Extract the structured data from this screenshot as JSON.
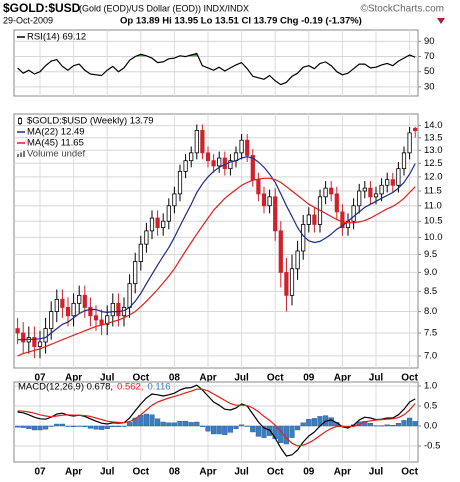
{
  "header": {
    "title": "$GOLD:$USD",
    "subtitle": "(Gold (EOD)/US Dollar (EOD)) INDX/INDX",
    "source": "©StockCharts.com",
    "date": "29-Oct-2009",
    "quote": "Op 13.89 Hi 13.95 Lo 13.51 Cl 13.79 Chg -0.19 (-1.37%)"
  },
  "chart_data": [
    {
      "type": "line",
      "ylim": [
        18,
        105
      ],
      "yticks": [
        30,
        50,
        70,
        90
      ],
      "grid": true,
      "legend": "top-left",
      "overbought": 70,
      "overbought_color": "#5a9a5a",
      "series": [
        {
          "name": "RSI(14) 69.12",
          "color": "#000000",
          "values": [
            55,
            48,
            52,
            47,
            50,
            58,
            64,
            66,
            57,
            52,
            58,
            60,
            52,
            47,
            46,
            45,
            52,
            57,
            50,
            55,
            65,
            70,
            73,
            71,
            68,
            62,
            63,
            67,
            68,
            71,
            70,
            72,
            74,
            58,
            55,
            52,
            56,
            51,
            55,
            59,
            62,
            54,
            44,
            42,
            40,
            45,
            38,
            33,
            36,
            44,
            48,
            56,
            58,
            54,
            61,
            63,
            58,
            50,
            46,
            48,
            54,
            60,
            60,
            55,
            56,
            59,
            61,
            58,
            64,
            68,
            72,
            69.12
          ]
        }
      ]
    },
    {
      "type": "candlestick",
      "log": true,
      "ylim": [
        6.75,
        14.5
      ],
      "grid": true,
      "legend": "top-left",
      "yticks": [
        {
          "value": 7,
          "label": "7.0"
        },
        7.5,
        {
          "value": 8,
          "label": "8.0"
        },
        8.5,
        {
          "value": 9,
          "label": "9.0"
        },
        9.5,
        {
          "value": 10,
          "label": "10.0"
        },
        10.5,
        {
          "value": 11,
          "label": "11.0"
        },
        11.5,
        {
          "value": 12,
          "label": "12.0"
        },
        12.5,
        {
          "value": 13,
          "label": "13.0"
        },
        13.5,
        {
          "value": 14,
          "label": "14.0"
        }
      ],
      "categories": [
        null,
        null,
        null,
        null,
        "07",
        null,
        null,
        null,
        null,
        null,
        "Apr",
        null,
        null,
        null,
        null,
        null,
        "Jul",
        null,
        null,
        null,
        null,
        null,
        "Oct",
        null,
        null,
        null,
        null,
        null,
        "08",
        null,
        null,
        null,
        null,
        null,
        "Apr",
        null,
        null,
        null,
        null,
        null,
        "Jul",
        null,
        null,
        null,
        null,
        null,
        "Oct",
        null,
        null,
        null,
        null,
        null,
        "09",
        null,
        null,
        null,
        null,
        null,
        "Apr",
        null,
        null,
        null,
        null,
        null,
        "Jul",
        null,
        null,
        null,
        null,
        null,
        "Oct",
        null
      ],
      "volume_label": "Volume undef",
      "series": [
        {
          "name": "$GOLD:$USD (Weekly) 13.79",
          "color": "#000000",
          "down_color": "#d0202a",
          "open": [
            7.6,
            7.5,
            7.3,
            7.4,
            7.2,
            7.3,
            7.6,
            8.0,
            8.3,
            8.1,
            7.9,
            8.2,
            8.4,
            8.1,
            7.9,
            7.8,
            7.7,
            7.9,
            8.2,
            7.9,
            8.1,
            8.7,
            9.3,
            9.8,
            10.2,
            10.6,
            10.3,
            10.5,
            11.0,
            11.4,
            12.2,
            12.6,
            12.9,
            13.8,
            12.9,
            12.6,
            12.4,
            12.7,
            12.3,
            12.6,
            12.9,
            13.4,
            12.8,
            11.9,
            11.4,
            11.0,
            11.3,
            10.2,
            9.0,
            8.4,
            9.1,
            9.6,
            10.4,
            10.7,
            10.4,
            11.3,
            11.6,
            11.4,
            10.8,
            10.3,
            10.5,
            11.0,
            11.5,
            11.6,
            11.3,
            11.4,
            11.7,
            11.9,
            11.7,
            12.3,
            12.9,
            13.89
          ],
          "high": [
            7.85,
            7.75,
            7.65,
            7.65,
            7.55,
            7.85,
            8.25,
            8.55,
            8.55,
            8.35,
            8.45,
            8.65,
            8.65,
            8.35,
            8.15,
            8.05,
            8.15,
            8.45,
            8.45,
            8.35,
            8.95,
            9.55,
            10.05,
            10.45,
            10.85,
            10.85,
            10.75,
            11.25,
            11.65,
            12.45,
            12.85,
            13.15,
            14.05,
            14.05,
            13.15,
            12.85,
            12.95,
            12.95,
            12.85,
            13.15,
            13.65,
            13.65,
            13.05,
            12.15,
            11.65,
            11.55,
            11.6,
            10.5,
            9.4,
            9.5,
            9.9,
            10.7,
            10.95,
            10.95,
            11.55,
            11.85,
            11.85,
            11.65,
            11.05,
            10.75,
            11.25,
            11.75,
            11.85,
            11.85,
            11.65,
            11.95,
            12.15,
            12.15,
            12.55,
            13.15,
            13.95,
            13.95
          ],
          "low": [
            7.25,
            7.05,
            7.05,
            6.95,
            6.95,
            7.05,
            7.35,
            7.75,
            7.85,
            7.65,
            7.65,
            7.95,
            7.85,
            7.65,
            7.55,
            7.45,
            7.45,
            7.65,
            7.65,
            7.65,
            7.85,
            8.45,
            9.05,
            9.55,
            9.95,
            10.05,
            10.05,
            10.25,
            10.75,
            11.15,
            11.95,
            12.35,
            12.65,
            12.65,
            12.35,
            12.15,
            12.15,
            12.05,
            12.05,
            12.35,
            12.65,
            12.55,
            11.65,
            11.15,
            10.75,
            10.75,
            9.9,
            8.6,
            8.0,
            8.15,
            8.8,
            9.35,
            10.15,
            10.15,
            10.15,
            11.05,
            11.15,
            10.55,
            10.05,
            10.05,
            10.25,
            10.75,
            11.25,
            11.05,
            11.05,
            11.15,
            11.45,
            11.45,
            11.45,
            12.05,
            12.65,
            13.51
          ],
          "close": [
            7.5,
            7.3,
            7.4,
            7.2,
            7.3,
            7.6,
            8.0,
            8.3,
            8.1,
            7.9,
            8.2,
            8.4,
            8.1,
            7.9,
            7.8,
            7.7,
            7.9,
            8.2,
            7.9,
            8.1,
            8.7,
            9.3,
            9.8,
            10.2,
            10.6,
            10.3,
            10.5,
            11.0,
            11.4,
            12.2,
            12.6,
            12.9,
            13.8,
            12.9,
            12.6,
            12.4,
            12.7,
            12.3,
            12.6,
            12.9,
            13.4,
            12.8,
            11.9,
            11.4,
            11.0,
            11.3,
            10.2,
            9.0,
            8.4,
            9.1,
            9.6,
            10.4,
            10.7,
            10.4,
            11.3,
            11.6,
            11.4,
            10.8,
            10.3,
            10.5,
            11.0,
            11.5,
            11.6,
            11.3,
            11.4,
            11.7,
            11.9,
            11.7,
            12.3,
            12.9,
            13.7,
            13.79
          ]
        },
        {
          "name": "MA(22) 12.49",
          "type": "line",
          "color": "#1f2a8c",
          "values": [
            7.35,
            7.35,
            7.36,
            7.36,
            7.37,
            7.4,
            7.5,
            7.6,
            7.7,
            7.75,
            7.85,
            7.95,
            8.02,
            8.05,
            8.05,
            8.0,
            7.98,
            8.0,
            8.0,
            8.02,
            8.1,
            8.25,
            8.45,
            8.7,
            8.95,
            9.2,
            9.45,
            9.7,
            10.0,
            10.35,
            10.7,
            11.05,
            11.45,
            11.75,
            12.0,
            12.2,
            12.35,
            12.45,
            12.55,
            12.6,
            12.7,
            12.75,
            12.7,
            12.55,
            12.35,
            12.1,
            11.8,
            11.4,
            11.0,
            10.65,
            10.3,
            10.05,
            9.9,
            9.85,
            9.88,
            9.98,
            10.1,
            10.25,
            10.35,
            10.5,
            10.65,
            10.8,
            10.95,
            11.05,
            11.15,
            11.25,
            11.35,
            11.45,
            11.6,
            11.8,
            12.1,
            12.49
          ]
        },
        {
          "name": "MA(45) 11.65",
          "type": "line",
          "color": "#e0201b",
          "values": [
            7.0,
            7.05,
            7.08,
            7.12,
            7.15,
            7.2,
            7.25,
            7.3,
            7.35,
            7.4,
            7.45,
            7.5,
            7.55,
            7.6,
            7.65,
            7.68,
            7.72,
            7.76,
            7.8,
            7.85,
            7.92,
            8.0,
            8.12,
            8.25,
            8.4,
            8.55,
            8.72,
            8.9,
            9.1,
            9.35,
            9.6,
            9.85,
            10.1,
            10.35,
            10.6,
            10.85,
            11.05,
            11.25,
            11.4,
            11.55,
            11.7,
            11.8,
            11.88,
            11.92,
            11.95,
            11.95,
            11.9,
            11.8,
            11.65,
            11.5,
            11.35,
            11.2,
            11.05,
            10.95,
            10.85,
            10.75,
            10.65,
            10.55,
            10.48,
            10.45,
            10.45,
            10.48,
            10.52,
            10.6,
            10.7,
            10.8,
            10.9,
            10.98,
            11.1,
            11.25,
            11.45,
            11.65
          ]
        }
      ]
    },
    {
      "type": "line",
      "ylim": [
        -0.9,
        1.1
      ],
      "grid": true,
      "legend": "top-left",
      "legend_layout": "inline",
      "yticks": [
        {
          "value": 1,
          "label": "1.0"
        },
        0.5,
        {
          "value": 0,
          "label": "0.0"
        },
        -0.5
      ],
      "categories": [
        null,
        null,
        null,
        null,
        "07",
        null,
        null,
        null,
        null,
        null,
        "Apr",
        null,
        null,
        null,
        null,
        null,
        "Jul",
        null,
        null,
        null,
        null,
        null,
        "Oct",
        null,
        null,
        null,
        null,
        null,
        "08",
        null,
        null,
        null,
        null,
        null,
        "Apr",
        null,
        null,
        null,
        null,
        null,
        "Jul",
        null,
        null,
        null,
        null,
        null,
        "Oct",
        null,
        null,
        null,
        null,
        null,
        "09",
        null,
        null,
        null,
        null,
        null,
        "Apr",
        null,
        null,
        null,
        null,
        null,
        "Jul",
        null,
        null,
        null,
        null,
        null,
        "Oct",
        null
      ],
      "series": [
        {
          "name": "0.116",
          "type": "bar",
          "color": "#3a7dc0",
          "values": [
            -0.03,
            -0.04,
            -0.07,
            -0.1,
            -0.1,
            -0.08,
            -0.01,
            0.05,
            0.05,
            -0.01,
            -0.02,
            0,
            -0.02,
            -0.06,
            -0.08,
            -0.09,
            -0.07,
            -0.02,
            -0.02,
            0,
            0.09,
            0.2,
            0.27,
            0.3,
            0.28,
            0.18,
            0.1,
            0.08,
            0.08,
            0.12,
            0.12,
            0.09,
            0.1,
            -0.02,
            -0.13,
            -0.2,
            -0.2,
            -0.22,
            -0.16,
            -0.07,
            0.03,
            -0.01,
            -0.15,
            -0.26,
            -0.29,
            -0.24,
            -0.32,
            -0.42,
            -0.45,
            -0.29,
            -0.1,
            0.08,
            0.17,
            0.19,
            0.24,
            0.26,
            0.21,
            0.09,
            -0.01,
            -0.03,
            0.03,
            0.11,
            0.12,
            0.07,
            0.01,
            0.01,
            0.03,
            0.02,
            0.07,
            0.14,
            0.2,
            0.116
          ]
        },
        {
          "name": "MACD(12,26,9) 0.678,",
          "color": "#000000",
          "values": [
            0.35,
            0.33,
            0.28,
            0.22,
            0.18,
            0.17,
            0.22,
            0.3,
            0.32,
            0.27,
            0.25,
            0.27,
            0.24,
            0.18,
            0.12,
            0.07,
            0.05,
            0.08,
            0.07,
            0.08,
            0.2,
            0.38,
            0.55,
            0.7,
            0.8,
            0.78,
            0.75,
            0.78,
            0.82,
            0.9,
            0.95,
            0.96,
            1.02,
            0.9,
            0.75,
            0.6,
            0.52,
            0.42,
            0.4,
            0.45,
            0.55,
            0.5,
            0.3,
            0.1,
            -0.05,
            -0.1,
            -0.3,
            -0.55,
            -0.75,
            -0.72,
            -0.6,
            -0.4,
            -0.25,
            -0.15,
            0.0,
            0.12,
            0.15,
            0.08,
            -0.02,
            -0.05,
            0.02,
            0.15,
            0.22,
            0.2,
            0.16,
            0.17,
            0.2,
            0.2,
            0.28,
            0.42,
            0.6,
            0.678
          ]
        },
        {
          "name": "0.562,",
          "color": "#e0201b",
          "values": [
            0.38,
            0.37,
            0.35,
            0.32,
            0.28,
            0.25,
            0.23,
            0.25,
            0.27,
            0.28,
            0.27,
            0.27,
            0.26,
            0.24,
            0.2,
            0.16,
            0.12,
            0.1,
            0.09,
            0.08,
            0.11,
            0.18,
            0.28,
            0.4,
            0.52,
            0.6,
            0.65,
            0.7,
            0.74,
            0.78,
            0.83,
            0.87,
            0.92,
            0.92,
            0.88,
            0.8,
            0.72,
            0.64,
            0.56,
            0.52,
            0.52,
            0.51,
            0.45,
            0.36,
            0.24,
            0.14,
            0.02,
            -0.13,
            -0.3,
            -0.43,
            -0.5,
            -0.48,
            -0.42,
            -0.34,
            -0.24,
            -0.14,
            -0.06,
            -0.01,
            -0.01,
            -0.02,
            -0.01,
            0.04,
            0.1,
            0.13,
            0.15,
            0.16,
            0.17,
            0.18,
            0.21,
            0.28,
            0.4,
            0.562
          ]
        }
      ]
    }
  ]
}
